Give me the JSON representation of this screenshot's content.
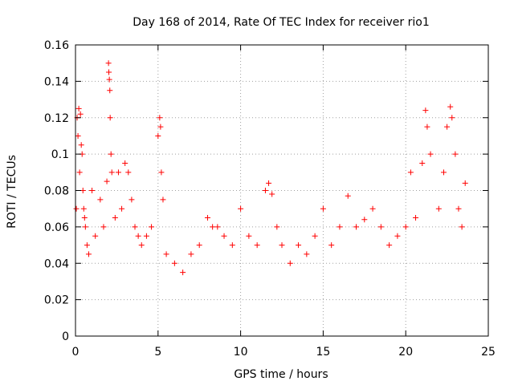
{
  "chart_data": {
    "type": "scatter",
    "title": "Day 168 of 2014, Rate Of TEC Index for receiver rio1",
    "xlabel": "GPS time / hours",
    "ylabel": "ROTI / TECUs",
    "xlim": [
      0,
      25
    ],
    "ylim": [
      0,
      0.16
    ],
    "x_ticks": [
      0,
      5,
      10,
      15,
      20,
      25
    ],
    "x_tick_labels": [
      "0",
      "5",
      "10",
      "15",
      "20",
      "25"
    ],
    "y_ticks": [
      0,
      0.02,
      0.04,
      0.06,
      0.08,
      0.1,
      0.12,
      0.14,
      0.16
    ],
    "y_tick_labels": [
      "0",
      "0.02",
      "0.04",
      "0.06",
      "0.08",
      "0.1",
      "0.12",
      "0.14",
      "0.16"
    ],
    "grid": true,
    "grid_style": "dotted",
    "marker": "+",
    "color": "#ff0000",
    "x_range_of_points": [
      0,
      23.8
    ],
    "series": [
      {
        "points": [
          [
            0.05,
            0.07
          ],
          [
            0.1,
            0.12
          ],
          [
            0.15,
            0.11
          ],
          [
            0.2,
            0.125
          ],
          [
            0.25,
            0.09
          ],
          [
            0.3,
            0.122
          ],
          [
            0.35,
            0.105
          ],
          [
            0.4,
            0.1
          ],
          [
            0.45,
            0.08
          ],
          [
            0.5,
            0.07
          ],
          [
            0.55,
            0.065
          ],
          [
            0.6,
            0.06
          ],
          [
            0.7,
            0.05
          ],
          [
            0.8,
            0.045
          ],
          [
            1.0,
            0.08
          ],
          [
            1.2,
            0.055
          ],
          [
            1.5,
            0.075
          ],
          [
            1.7,
            0.06
          ],
          [
            1.9,
            0.085
          ],
          [
            2.0,
            0.15
          ],
          [
            2.02,
            0.145
          ],
          [
            2.05,
            0.141
          ],
          [
            2.08,
            0.135
          ],
          [
            2.1,
            0.12
          ],
          [
            2.15,
            0.1
          ],
          [
            2.2,
            0.09
          ],
          [
            2.4,
            0.065
          ],
          [
            2.6,
            0.09
          ],
          [
            2.8,
            0.07
          ],
          [
            3.0,
            0.095
          ],
          [
            3.2,
            0.09
          ],
          [
            3.4,
            0.075
          ],
          [
            3.6,
            0.06
          ],
          [
            3.8,
            0.055
          ],
          [
            4.0,
            0.05
          ],
          [
            4.3,
            0.055
          ],
          [
            4.6,
            0.06
          ],
          [
            5.0,
            0.11
          ],
          [
            5.1,
            0.12
          ],
          [
            5.15,
            0.115
          ],
          [
            5.2,
            0.09
          ],
          [
            5.3,
            0.075
          ],
          [
            5.5,
            0.045
          ],
          [
            6.0,
            0.04
          ],
          [
            6.5,
            0.035
          ],
          [
            7.0,
            0.045
          ],
          [
            7.5,
            0.05
          ],
          [
            8.0,
            0.065
          ],
          [
            8.3,
            0.06
          ],
          [
            8.6,
            0.06
          ],
          [
            9.0,
            0.055
          ],
          [
            9.5,
            0.05
          ],
          [
            10.0,
            0.07
          ],
          [
            10.5,
            0.055
          ],
          [
            11.0,
            0.05
          ],
          [
            11.5,
            0.08
          ],
          [
            11.7,
            0.084
          ],
          [
            11.9,
            0.078
          ],
          [
            12.2,
            0.06
          ],
          [
            12.5,
            0.05
          ],
          [
            13.0,
            0.04
          ],
          [
            13.5,
            0.05
          ],
          [
            14.0,
            0.045
          ],
          [
            14.5,
            0.055
          ],
          [
            15.0,
            0.07
          ],
          [
            15.5,
            0.05
          ],
          [
            16.0,
            0.06
          ],
          [
            16.5,
            0.077
          ],
          [
            17.0,
            0.06
          ],
          [
            17.5,
            0.064
          ],
          [
            18.0,
            0.07
          ],
          [
            18.5,
            0.06
          ],
          [
            19.0,
            0.05
          ],
          [
            19.5,
            0.055
          ],
          [
            20.0,
            0.06
          ],
          [
            20.3,
            0.09
          ],
          [
            20.6,
            0.065
          ],
          [
            21.0,
            0.095
          ],
          [
            21.2,
            0.124
          ],
          [
            21.3,
            0.115
          ],
          [
            21.5,
            0.1
          ],
          [
            22.0,
            0.07
          ],
          [
            22.3,
            0.09
          ],
          [
            22.5,
            0.115
          ],
          [
            22.7,
            0.126
          ],
          [
            22.8,
            0.12
          ],
          [
            23.0,
            0.1
          ],
          [
            23.2,
            0.07
          ],
          [
            23.4,
            0.06
          ],
          [
            23.6,
            0.084
          ]
        ]
      }
    ]
  }
}
